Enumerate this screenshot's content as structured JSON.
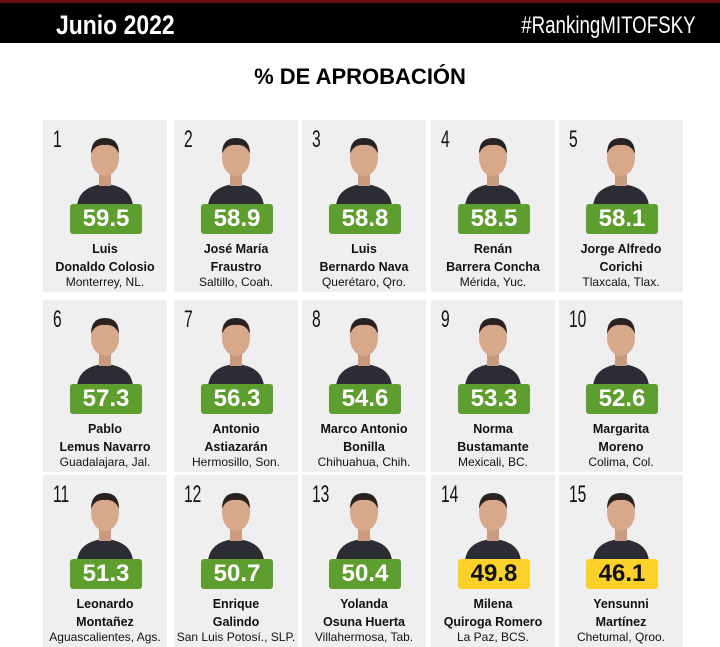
{
  "header": {
    "month": "Junio 2022",
    "hashtag": "#RankingMITOFSKY"
  },
  "title": "% DE APROBACIÓN",
  "colors": {
    "green": "#5e9e2e",
    "yellow": "#fcd12a"
  },
  "ranking": [
    {
      "rank": "1",
      "score": "59.5",
      "name1": "Luis",
      "name2": "Donaldo Colosio",
      "city": "Monterrey, NL.",
      "color": "green"
    },
    {
      "rank": "2",
      "score": "58.9",
      "name1": "José María",
      "name2": "Fraustro",
      "city": "Saltillo, Coah.",
      "color": "green"
    },
    {
      "rank": "3",
      "score": "58.8",
      "name1": "Luis",
      "name2": "Bernardo Nava",
      "city": "Querétaro, Qro.",
      "color": "green"
    },
    {
      "rank": "4",
      "score": "58.5",
      "name1": "Renán",
      "name2": "Barrera Concha",
      "city": "Mérida, Yuc.",
      "color": "green"
    },
    {
      "rank": "5",
      "score": "58.1",
      "name1": "Jorge Alfredo",
      "name2": "Corichi",
      "city": "Tlaxcala, Tlax.",
      "color": "green"
    },
    {
      "rank": "6",
      "score": "57.3",
      "name1": "Pablo",
      "name2": "Lemus Navarro",
      "city": "Guadalajara, Jal.",
      "color": "green"
    },
    {
      "rank": "7",
      "score": "56.3",
      "name1": "Antonio",
      "name2": "Astiazarán",
      "city": "Hermosillo, Son.",
      "color": "green"
    },
    {
      "rank": "8",
      "score": "54.6",
      "name1": "Marco Antonio",
      "name2": "Bonilla",
      "city": "Chihuahua, Chih.",
      "color": "green"
    },
    {
      "rank": "9",
      "score": "53.3",
      "name1": "Norma",
      "name2": "Bustamante",
      "city": "Mexicali, BC.",
      "color": "green"
    },
    {
      "rank": "10",
      "score": "52.6",
      "name1": "Margarita",
      "name2": "Moreno",
      "city": "Colima, Col.",
      "color": "green"
    },
    {
      "rank": "11",
      "score": "51.3",
      "name1": "Leonardo",
      "name2": "Montañez",
      "city": "Aguascalientes, Ags.",
      "color": "green"
    },
    {
      "rank": "12",
      "score": "50.7",
      "name1": "Enrique",
      "name2": "Galindo",
      "city": "San Luis Potosí., SLP.",
      "color": "green"
    },
    {
      "rank": "13",
      "score": "50.4",
      "name1": "Yolanda",
      "name2": "Osuna Huerta",
      "city": "Villahermosa, Tab.",
      "color": "green"
    },
    {
      "rank": "14",
      "score": "49.8",
      "name1": "Milena",
      "name2": "Quiroga Romero",
      "city": "La Paz, BCS.",
      "color": "yellow"
    },
    {
      "rank": "15",
      "score": "46.1",
      "name1": "Yensunni",
      "name2": "Martínez",
      "city": "Chetumal, Qroo.",
      "color": "yellow"
    }
  ]
}
